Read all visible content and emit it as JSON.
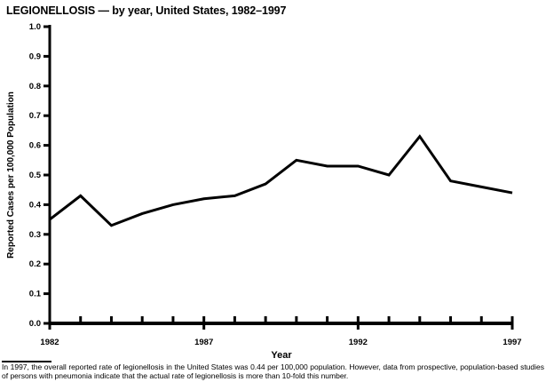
{
  "header": {
    "title": "LEGIONELLOSIS — by year, United States, 1982–1997"
  },
  "chart_data": {
    "type": "line",
    "title": "LEGIONELLOSIS — by year, United States, 1982–1997",
    "xlabel": "Year",
    "ylabel": "Reported Cases per 100,000 Population",
    "x": [
      1982,
      1983,
      1984,
      1985,
      1986,
      1987,
      1988,
      1989,
      1990,
      1991,
      1992,
      1993,
      1994,
      1995,
      1996,
      1997
    ],
    "values": [
      0.35,
      0.43,
      0.33,
      0.37,
      0.4,
      0.42,
      0.43,
      0.47,
      0.55,
      0.53,
      0.53,
      0.5,
      0.63,
      0.48,
      0.46,
      0.44
    ],
    "xlim": [
      1982,
      1997
    ],
    "ylim": [
      0.0,
      1.0
    ],
    "y_tick_step": 0.1,
    "x_major_ticks": [
      1982,
      1987,
      1992,
      1997
    ],
    "grid": false,
    "legend": "none",
    "line_color": "#000000",
    "background_color": "#ffffff"
  },
  "footnote": {
    "text": "In 1997, the overall reported rate of legionellosis in the United States was 0.44 per 100,000 population. However, data from prospective, population-based studies of persons with pneumonia indicate that the actual rate of legionellosis is more than 10-fold this number."
  }
}
